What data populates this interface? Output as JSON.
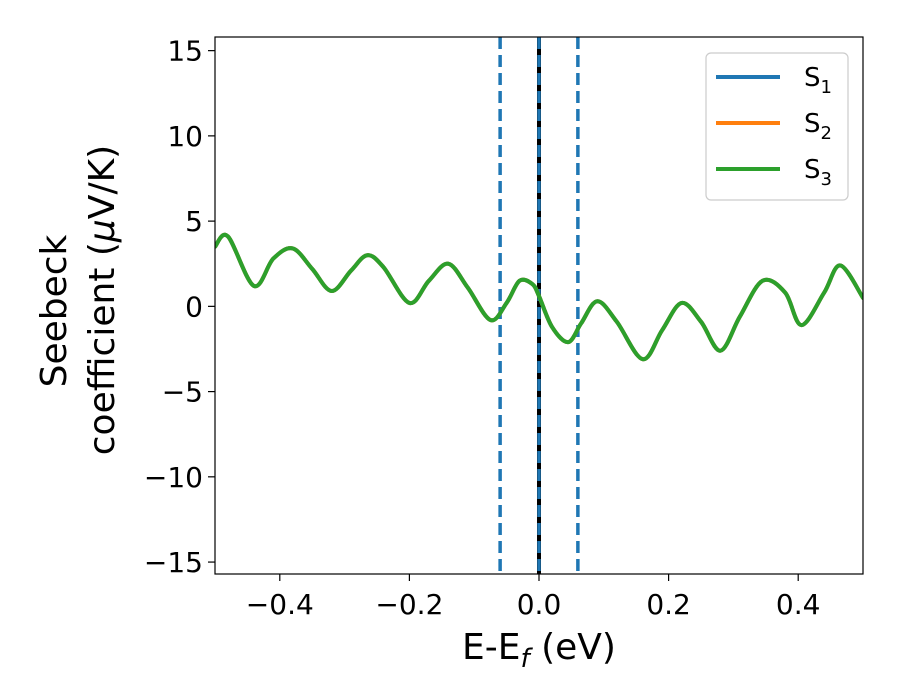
{
  "chart_data": {
    "type": "line",
    "xlabel": {
      "main": "E-E",
      "sub": "f",
      "unit": " (eV)"
    },
    "ylabel": {
      "line1": "Seebeck",
      "line2": "coefficient  (",
      "mu": "μ",
      "unit": "V/K)"
    },
    "xlim": [
      -0.5,
      0.5
    ],
    "ylim": [
      -15.7,
      15.8
    ],
    "xticks": [
      -0.4,
      -0.2,
      0.0,
      0.2,
      0.4
    ],
    "xtick_labels": [
      "−0.4",
      "−0.2",
      "0.0",
      "0.2",
      "0.4"
    ],
    "yticks": [
      -15,
      -10,
      -5,
      0,
      5,
      10,
      15
    ],
    "ytick_labels": [
      "−15",
      "−10",
      "−5",
      "0",
      "5",
      "10",
      "15"
    ],
    "grid": false,
    "legend_placement": "top-right",
    "vlines": [
      {
        "x": -0.06,
        "style": "dashed",
        "color": "#1f77b4"
      },
      {
        "x": 0.0,
        "style": "solid",
        "color": "#000000"
      },
      {
        "x": 0.0,
        "style": "dashed",
        "color": "#1f77b4"
      },
      {
        "x": 0.06,
        "style": "dashed",
        "color": "#1f77b4"
      }
    ],
    "x": [
      -0.5,
      -0.48,
      -0.44,
      -0.41,
      -0.38,
      -0.35,
      -0.32,
      -0.29,
      -0.265,
      -0.24,
      -0.2,
      -0.17,
      -0.14,
      -0.11,
      -0.075,
      -0.05,
      -0.03,
      -0.01,
      0.0,
      0.02,
      0.045,
      0.065,
      0.09,
      0.12,
      0.16,
      0.19,
      0.22,
      0.25,
      0.28,
      0.31,
      0.345,
      0.38,
      0.405,
      0.44,
      0.465,
      0.5
    ],
    "series": [
      {
        "name": "S",
        "sub": "1",
        "color": "#1f77b4",
        "values": [
          3.5,
          4.1,
          1.2,
          2.8,
          3.4,
          2.2,
          0.9,
          2.1,
          3.0,
          2.3,
          0.2,
          1.5,
          2.5,
          1.1,
          -0.8,
          0.2,
          1.5,
          1.3,
          0.6,
          -1.2,
          -2.1,
          -1.0,
          0.3,
          -0.9,
          -3.1,
          -1.4,
          0.2,
          -0.9,
          -2.6,
          -0.6,
          1.5,
          0.8,
          -1.1,
          0.8,
          2.4,
          0.5
        ]
      },
      {
        "name": "S",
        "sub": "2",
        "color": "#ff7f0e",
        "values": [
          3.5,
          4.1,
          1.2,
          2.8,
          3.4,
          2.2,
          0.9,
          2.1,
          3.0,
          2.3,
          0.2,
          1.5,
          2.5,
          1.1,
          -0.8,
          0.2,
          1.5,
          1.3,
          0.6,
          -1.2,
          -2.1,
          -1.0,
          0.3,
          -0.9,
          -3.1,
          -1.4,
          0.2,
          -0.9,
          -2.6,
          -0.6,
          1.5,
          0.8,
          -1.1,
          0.8,
          2.4,
          0.5
        ]
      },
      {
        "name": "S",
        "sub": "3",
        "color": "#2ca02c",
        "values": [
          3.5,
          4.1,
          1.2,
          2.8,
          3.4,
          2.2,
          0.9,
          2.1,
          3.0,
          2.3,
          0.2,
          1.5,
          2.5,
          1.1,
          -0.8,
          0.2,
          1.5,
          1.3,
          0.6,
          -1.2,
          -2.1,
          -1.0,
          0.3,
          -0.9,
          -3.1,
          -1.4,
          0.2,
          -0.9,
          -2.6,
          -0.6,
          1.5,
          0.8,
          -1.1,
          0.8,
          2.4,
          0.5
        ]
      }
    ]
  }
}
